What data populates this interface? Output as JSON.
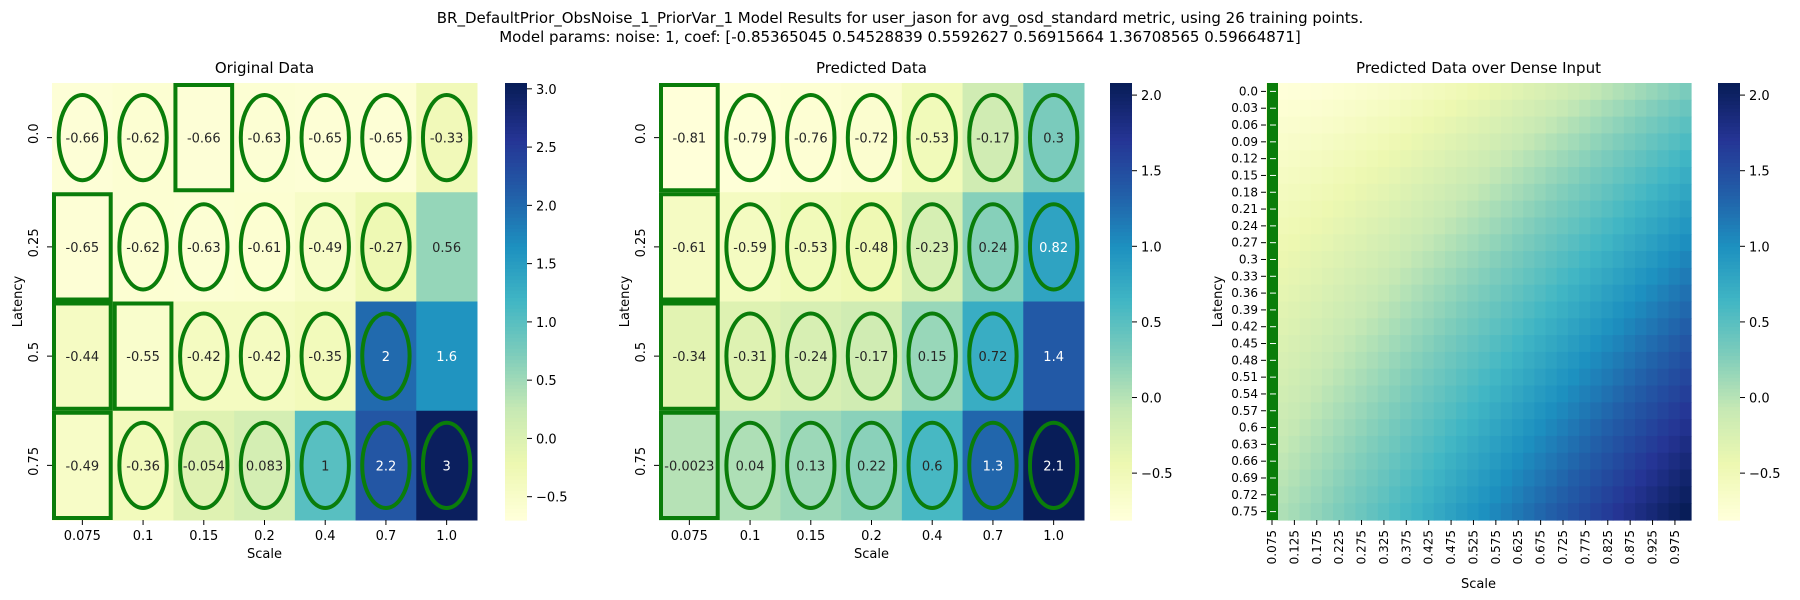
{
  "figure": {
    "suptitle_line1": "BR_DefaultPrior_ObsNoise_1_PriorVar_1 Model Results for user_jason for avg_osd_standard metric, using 26 training points.",
    "suptitle_line2": "Model params: noise: 1, coef: [-0.85365045  0.54528839  0.5592627   0.56915664  1.36708565  0.59664871]"
  },
  "colors": {
    "colormap": "YlGnBu",
    "marker": "#0a7d0a"
  },
  "chart_data": [
    {
      "type": "heatmap",
      "title": "Original Data",
      "xlabel": "Scale",
      "ylabel": "Latency",
      "x_ticks": [
        "0.075",
        "0.1",
        "0.15",
        "0.2",
        "0.4",
        "0.7",
        "1.0"
      ],
      "y_ticks": [
        "0.0",
        "0.25",
        "0.5",
        "0.75"
      ],
      "values": [
        [
          -0.66,
          -0.62,
          -0.66,
          -0.63,
          -0.65,
          -0.65,
          -0.33
        ],
        [
          -0.65,
          -0.62,
          -0.63,
          -0.61,
          -0.49,
          -0.27,
          0.56
        ],
        [
          -0.44,
          -0.55,
          -0.42,
          -0.42,
          -0.35,
          2,
          1.6
        ],
        [
          -0.49,
          -0.36,
          -0.054,
          0.083,
          1,
          2.2,
          3
        ]
      ],
      "vmin": -0.7,
      "vmax": 3.05,
      "colorbar_ticks": [
        -0.5,
        0.0,
        0.5,
        1.0,
        1.5,
        2.0,
        2.5,
        3.0
      ],
      "markers": [
        [
          "ellipse",
          "ellipse",
          "rect",
          "ellipse",
          "ellipse",
          "ellipse",
          "ellipse"
        ],
        [
          "rect",
          "ellipse",
          "ellipse",
          "ellipse",
          "ellipse",
          "ellipse",
          "none"
        ],
        [
          "rect",
          "rect",
          "ellipse",
          "ellipse",
          "ellipse",
          "ellipse",
          "none"
        ],
        [
          "rect",
          "ellipse",
          "ellipse",
          "ellipse",
          "ellipse",
          "ellipse",
          "ellipse"
        ]
      ]
    },
    {
      "type": "heatmap",
      "title": "Predicted Data",
      "xlabel": "Scale",
      "ylabel": "Latency",
      "x_ticks": [
        "0.075",
        "0.1",
        "0.15",
        "0.2",
        "0.4",
        "0.7",
        "1.0"
      ],
      "y_ticks": [
        "0.0",
        "0.25",
        "0.5",
        "0.75"
      ],
      "values": [
        [
          -0.81,
          -0.79,
          -0.76,
          -0.72,
          -0.53,
          -0.17,
          0.3
        ],
        [
          -0.61,
          -0.59,
          -0.53,
          -0.48,
          -0.23,
          0.24,
          0.82
        ],
        [
          -0.34,
          -0.31,
          -0.24,
          -0.17,
          0.15,
          0.72,
          1.4
        ],
        [
          -0.0023,
          0.04,
          0.13,
          0.22,
          0.6,
          1.3,
          2.1
        ]
      ],
      "vmin": -0.81,
      "vmax": 2.08,
      "colorbar_ticks": [
        -0.5,
        0.0,
        0.5,
        1.0,
        1.5,
        2.0
      ],
      "markers": [
        [
          "rect",
          "ellipse",
          "ellipse",
          "ellipse",
          "ellipse",
          "ellipse",
          "ellipse"
        ],
        [
          "rect",
          "ellipse",
          "ellipse",
          "ellipse",
          "ellipse",
          "ellipse",
          "ellipse"
        ],
        [
          "rect",
          "ellipse",
          "ellipse",
          "ellipse",
          "ellipse",
          "ellipse",
          "none"
        ],
        [
          "rect",
          "ellipse",
          "ellipse",
          "ellipse",
          "ellipse",
          "ellipse",
          "ellipse"
        ]
      ]
    },
    {
      "type": "heatmap",
      "title": "Predicted Data over Dense Input",
      "xlabel": "Scale",
      "ylabel": "Latency",
      "x_ticks": [
        "0.075",
        "0.125",
        "0.175",
        "0.225",
        "0.275",
        "0.325",
        "0.375",
        "0.425",
        "0.475",
        "0.525",
        "0.575",
        "0.625",
        "0.675",
        "0.725",
        "0.775",
        "0.825",
        "0.875",
        "0.925",
        "0.975"
      ],
      "y_ticks": [
        "0.0",
        "0.03",
        "0.06",
        "0.09",
        "0.12",
        "0.15",
        "0.18",
        "0.21",
        "0.24",
        "0.27",
        "0.3",
        "0.33",
        "0.36",
        "0.39",
        "0.42",
        "0.45",
        "0.48",
        "0.51",
        "0.54",
        "0.57",
        "0.6",
        "0.63",
        "0.66",
        "0.69",
        "0.72",
        "0.75"
      ],
      "x_range": [
        0.075,
        1.0
      ],
      "y_range": [
        0.0,
        0.75
      ],
      "corner_values": {
        "top_left": -0.81,
        "top_right": 0.3,
        "bottom_left": 0.0,
        "bottom_right": 2.08
      },
      "vmin": -0.81,
      "vmax": 2.08,
      "colorbar_ticks": [
        -0.5,
        0.0,
        0.5,
        1.0,
        1.5,
        2.0
      ],
      "marker_column": "0.075"
    }
  ]
}
